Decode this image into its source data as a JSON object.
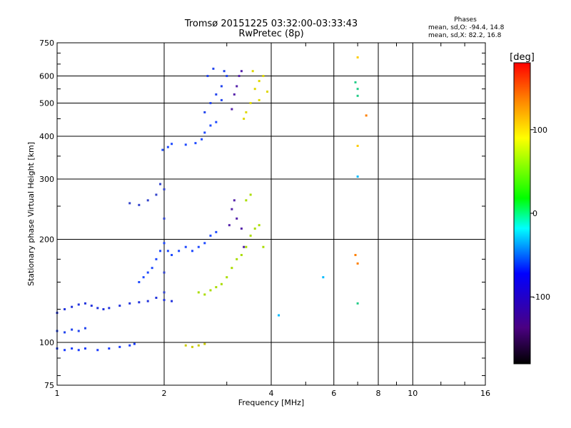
{
  "title_line1": "Tromsø 20151225 03:32:00-03:33:43",
  "title_line2": "RwPretec (8p)",
  "stats": {
    "header": "Phases",
    "line_o": "mean, sd,O: -94.4, 14.8",
    "line_x": "mean, sd,X:  82.2, 16.8"
  },
  "chart_data": {
    "type": "scatter",
    "title": "Tromsø 20151225 03:32:00-03:33:43",
    "subtitle": "RwPretec (8p)",
    "xlabel": "Frequency [MHz]",
    "ylabel": "Stationary phase Virtual Height [km]",
    "x_scale": "log",
    "y_scale": "log",
    "xlim": [
      1,
      16
    ],
    "ylim": [
      75,
      750
    ],
    "x_ticks": [
      1,
      2,
      4,
      6,
      8,
      10,
      16
    ],
    "x_tick_labels": [
      "1",
      "2",
      "4",
      "6",
      "8",
      "10",
      "16"
    ],
    "y_ticks": [
      75,
      100,
      200,
      300,
      400,
      500,
      600,
      750
    ],
    "y_tick_labels": [
      "75",
      "100",
      "200",
      "300",
      "400",
      "500",
      "600",
      "750"
    ],
    "grid": true,
    "colorbar": {
      "label": "[deg]",
      "range": [
        -180,
        180
      ],
      "ticks": [
        -100,
        0,
        100
      ],
      "tick_labels": [
        "-100",
        "0",
        "100"
      ],
      "colors": [
        "#000000",
        "#4b0082",
        "#0000ff",
        "#00ffff",
        "#00ff00",
        "#ffff00",
        "#ff8000",
        "#ff0000"
      ]
    },
    "series": [
      {
        "color": "#1a3cff",
        "points": [
          [
            1.0,
            96
          ],
          [
            1.05,
            95
          ],
          [
            1.1,
            96
          ],
          [
            1.15,
            95
          ],
          [
            1.2,
            96
          ],
          [
            1.3,
            95
          ],
          [
            1.4,
            96
          ],
          [
            1.5,
            97
          ],
          [
            1.6,
            98
          ],
          [
            1.65,
            99
          ]
        ]
      },
      {
        "color": "#2244ee",
        "points": [
          [
            1.0,
            108
          ],
          [
            1.05,
            107
          ],
          [
            1.1,
            109
          ],
          [
            1.15,
            108
          ],
          [
            1.2,
            110
          ]
        ]
      },
      {
        "color": "#2233dd",
        "points": [
          [
            1.0,
            122
          ],
          [
            1.05,
            125
          ],
          [
            1.1,
            127
          ],
          [
            1.15,
            129
          ],
          [
            1.2,
            130
          ],
          [
            1.25,
            128
          ],
          [
            1.3,
            126
          ],
          [
            1.35,
            125
          ],
          [
            1.4,
            126
          ],
          [
            1.5,
            128
          ],
          [
            1.6,
            130
          ],
          [
            1.7,
            131
          ],
          [
            1.8,
            132
          ],
          [
            1.9,
            135
          ],
          [
            2.0,
            133
          ],
          [
            2.1,
            132
          ]
        ]
      },
      {
        "color": "#1f4aff",
        "points": [
          [
            1.7,
            150
          ],
          [
            1.75,
            155
          ],
          [
            1.8,
            160
          ],
          [
            1.85,
            165
          ],
          [
            1.9,
            175
          ],
          [
            1.95,
            185
          ],
          [
            2.0,
            195
          ],
          [
            2.05,
            185
          ],
          [
            2.1,
            180
          ],
          [
            2.2,
            185
          ],
          [
            2.3,
            190
          ],
          [
            2.4,
            185
          ],
          [
            2.5,
            190
          ],
          [
            2.6,
            195
          ],
          [
            2.7,
            205
          ],
          [
            2.8,
            210
          ]
        ]
      },
      {
        "color": "#3344cc",
        "points": [
          [
            1.6,
            255
          ],
          [
            1.7,
            252
          ],
          [
            1.8,
            260
          ],
          [
            1.9,
            270
          ],
          [
            1.95,
            290
          ],
          [
            2.0,
            280
          ],
          [
            2.0,
            230
          ],
          [
            2.0,
            160
          ],
          [
            2.0,
            140
          ]
        ]
      },
      {
        "color": "#1f4aff",
        "points": [
          [
            1.98,
            365
          ],
          [
            2.05,
            372
          ],
          [
            2.1,
            380
          ],
          [
            2.3,
            378
          ],
          [
            2.45,
            382
          ],
          [
            2.55,
            392
          ],
          [
            2.6,
            410
          ],
          [
            2.7,
            430
          ],
          [
            2.8,
            440
          ]
        ]
      },
      {
        "color": "#2244ee",
        "points": [
          [
            2.6,
            470
          ],
          [
            2.7,
            500
          ],
          [
            2.8,
            530
          ],
          [
            2.65,
            600
          ],
          [
            2.75,
            630
          ],
          [
            2.9,
            560
          ],
          [
            3.0,
            600
          ],
          [
            2.9,
            510
          ],
          [
            2.95,
            620
          ]
        ]
      },
      {
        "color": "#5522aa",
        "points": [
          [
            3.1,
            480
          ],
          [
            3.15,
            530
          ],
          [
            3.2,
            560
          ],
          [
            3.25,
            600
          ],
          [
            3.3,
            620
          ],
          [
            3.05,
            220
          ],
          [
            3.1,
            245
          ],
          [
            3.15,
            260
          ],
          [
            3.2,
            230
          ],
          [
            3.3,
            215
          ],
          [
            3.35,
            190
          ]
        ]
      },
      {
        "color": "#e0d800",
        "points": [
          [
            3.35,
            450
          ],
          [
            3.4,
            470
          ],
          [
            3.5,
            500
          ],
          [
            3.6,
            550
          ],
          [
            3.7,
            580
          ],
          [
            3.8,
            600
          ],
          [
            3.55,
            620
          ],
          [
            3.9,
            540
          ],
          [
            3.7,
            510
          ]
        ]
      },
      {
        "color": "#aadd00",
        "points": [
          [
            2.5,
            140
          ],
          [
            2.6,
            138
          ],
          [
            2.7,
            142
          ],
          [
            2.8,
            145
          ],
          [
            2.9,
            148
          ],
          [
            3.0,
            155
          ],
          [
            3.1,
            165
          ],
          [
            3.2,
            175
          ],
          [
            3.3,
            180
          ],
          [
            3.4,
            190
          ],
          [
            3.5,
            205
          ],
          [
            3.6,
            215
          ],
          [
            3.7,
            220
          ],
          [
            3.8,
            190
          ],
          [
            3.5,
            270
          ],
          [
            3.4,
            260
          ]
        ]
      },
      {
        "color": "#cccc00",
        "points": [
          [
            2.3,
            98
          ],
          [
            2.4,
            97
          ],
          [
            2.5,
            98
          ],
          [
            2.6,
            99
          ]
        ]
      },
      {
        "color": "#ff8000",
        "points": [
          [
            6.9,
            180
          ],
          [
            7.0,
            170
          ],
          [
            7.4,
            460
          ]
        ]
      },
      {
        "color": "#22cc88",
        "points": [
          [
            7.0,
            130
          ],
          [
            6.9,
            575
          ],
          [
            7.0,
            550
          ],
          [
            7.0,
            525
          ]
        ]
      },
      {
        "color": "#ffcc00",
        "points": [
          [
            7.0,
            680
          ],
          [
            7.0,
            375
          ]
        ]
      },
      {
        "color": "#00bbff",
        "points": [
          [
            7.0,
            305
          ],
          [
            5.6,
            155
          ],
          [
            4.2,
            120
          ]
        ]
      }
    ]
  }
}
